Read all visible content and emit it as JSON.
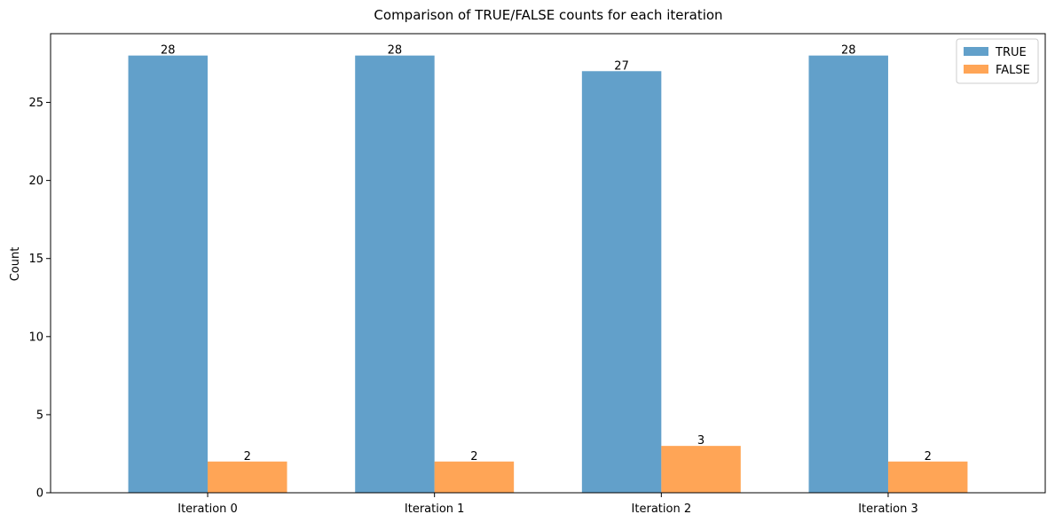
{
  "chart_data": {
    "type": "bar",
    "title": "Comparison of TRUE/FALSE counts for each iteration",
    "ylabel": "Count",
    "xlabel": "",
    "categories": [
      "Iteration 0",
      "Iteration 1",
      "Iteration 2",
      "Iteration 3"
    ],
    "series": [
      {
        "name": "TRUE",
        "values": [
          28,
          28,
          27,
          28
        ],
        "color": "#1f77b4"
      },
      {
        "name": "FALSE",
        "values": [
          2,
          2,
          3,
          2
        ],
        "color": "#ff7f0e"
      }
    ],
    "ylim": [
      0,
      29.4
    ],
    "yticks": [
      0,
      5,
      10,
      15,
      20,
      25
    ],
    "grid": false,
    "legend": "top-right"
  }
}
